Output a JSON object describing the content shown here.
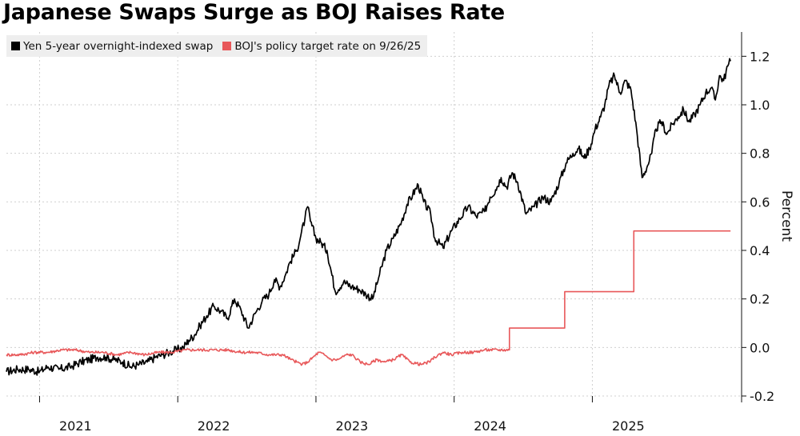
{
  "chart_data": {
    "type": "line",
    "title": "Japanese Swaps Surge as BOJ Raises Rate",
    "xlabel": "",
    "ylabel": "Percent",
    "ylim": [
      -0.2,
      1.3
    ],
    "xlim": [
      2020.5,
      2025.82
    ],
    "y_ticks": [
      -0.2,
      0.0,
      0.2,
      0.4,
      0.6,
      0.8,
      1.0,
      1.2
    ],
    "y_tick_labels": [
      "-0.2",
      "0.0",
      "0.2",
      "0.4",
      "0.6",
      "0.8",
      "1.0",
      "1.2"
    ],
    "x_tick_labels": [
      "2021",
      "2022",
      "2023",
      "2024",
      "2025"
    ],
    "x_tick_positions": [
      2021.0,
      2022.0,
      2023.0,
      2024.0,
      2025.0
    ],
    "x_gridlines": [
      2020.74,
      2021.74,
      2022.74,
      2023.74,
      2024.74
    ],
    "grid": true,
    "legend_position": "top-left",
    "colors": {
      "swap": "#000000",
      "policy": "#e8585a",
      "grid": "#cfcfcf",
      "legend_bg": "#eeeeee"
    },
    "series": [
      {
        "name": "Yen 5-year overnight-indexed swap",
        "color": "#000000",
        "x": [
          2020.5,
          2020.58,
          2020.66,
          2020.74,
          2020.8,
          2020.88,
          2020.96,
          2021.04,
          2021.1,
          2021.16,
          2021.22,
          2021.28,
          2021.34,
          2021.4,
          2021.46,
          2021.52,
          2021.58,
          2021.63,
          2021.68,
          2021.73,
          2021.78,
          2021.82,
          2021.86,
          2021.9,
          2021.95,
          2022.0,
          2022.05,
          2022.1,
          2022.15,
          2022.2,
          2022.25,
          2022.3,
          2022.35,
          2022.4,
          2022.44,
          2022.48,
          2022.52,
          2022.55,
          2022.6,
          2022.63,
          2022.66,
          2022.68,
          2022.7,
          2022.74,
          2022.78,
          2022.82,
          2022.88,
          2022.94,
          2023.0,
          2023.05,
          2023.1,
          2023.15,
          2023.2,
          2023.25,
          2023.3,
          2023.36,
          2023.4,
          2023.44,
          2023.48,
          2023.52,
          2023.57,
          2023.6,
          2023.66,
          2023.72,
          2023.78,
          2023.84,
          2023.9,
          2023.96,
          2024.0,
          2024.04,
          2024.08,
          2024.12,
          2024.16,
          2024.2,
          2024.26,
          2024.32,
          2024.38,
          2024.44,
          2024.5,
          2024.55,
          2024.6,
          2024.64,
          2024.68,
          2024.72,
          2024.76,
          2024.8,
          2024.83,
          2024.86,
          2024.9,
          2024.94,
          2024.98,
          2025.02,
          2025.06,
          2025.1,
          2025.14,
          2025.17,
          2025.2,
          2025.24,
          2025.28,
          2025.32,
          2025.36,
          2025.4,
          2025.44,
          2025.48,
          2025.52,
          2025.56,
          2025.6,
          2025.63,
          2025.66,
          2025.69,
          2025.72,
          2025.74
        ],
        "values": [
          -0.1,
          -0.09,
          -0.09,
          -0.1,
          -0.08,
          -0.09,
          -0.08,
          -0.06,
          -0.05,
          -0.04,
          -0.04,
          -0.05,
          -0.06,
          -0.08,
          -0.07,
          -0.06,
          -0.04,
          -0.03,
          -0.02,
          -0.01,
          0.0,
          0.03,
          0.05,
          0.09,
          0.13,
          0.17,
          0.15,
          0.12,
          0.2,
          0.15,
          0.08,
          0.14,
          0.19,
          0.22,
          0.28,
          0.25,
          0.3,
          0.35,
          0.4,
          0.46,
          0.53,
          0.58,
          0.52,
          0.45,
          0.43,
          0.4,
          0.23,
          0.27,
          0.25,
          0.24,
          0.22,
          0.2,
          0.3,
          0.4,
          0.45,
          0.52,
          0.59,
          0.63,
          0.67,
          0.6,
          0.55,
          0.45,
          0.41,
          0.48,
          0.53,
          0.58,
          0.54,
          0.56,
          0.62,
          0.65,
          0.7,
          0.66,
          0.72,
          0.68,
          0.55,
          0.58,
          0.62,
          0.6,
          0.68,
          0.76,
          0.8,
          0.82,
          0.78,
          0.82,
          0.9,
          0.95,
          1.0,
          1.08,
          1.12,
          1.05,
          1.1,
          1.06,
          0.9,
          0.7,
          0.75,
          0.8,
          0.9,
          0.93,
          0.88,
          0.92,
          0.95,
          0.98,
          0.93,
          0.96,
          1.0,
          1.05,
          1.07,
          1.02,
          1.12,
          1.1,
          1.16,
          1.18
        ]
      },
      {
        "name": "BOJ's policy target rate on 9/26/25",
        "color": "#e8585a",
        "x": [
          2020.5,
          2020.6,
          2020.7,
          2020.8,
          2020.9,
          2021.0,
          2021.1,
          2021.2,
          2021.3,
          2021.4,
          2021.5,
          2021.6,
          2021.7,
          2021.8,
          2021.9,
          2022.0,
          2022.1,
          2022.2,
          2022.3,
          2022.4,
          2022.5,
          2022.56,
          2022.6,
          2022.64,
          2022.68,
          2022.72,
          2022.76,
          2022.8,
          2022.85,
          2022.9,
          2022.96,
          2023.0,
          2023.06,
          2023.12,
          2023.18,
          2023.24,
          2023.3,
          2023.36,
          2023.42,
          2023.5,
          2023.56,
          2023.6,
          2023.66,
          2023.72,
          2023.8,
          2023.88,
          2023.96,
          2024.0,
          2024.14,
          2024.14,
          2024.4,
          2024.5,
          2024.54,
          2024.54,
          2024.7,
          2024.9,
          2025.0,
          2025.04,
          2025.04,
          2025.2,
          2025.4,
          2025.6,
          2025.74
        ],
        "values": [
          -0.03,
          -0.03,
          -0.02,
          -0.02,
          -0.01,
          -0.01,
          -0.02,
          -0.02,
          -0.03,
          -0.02,
          -0.03,
          -0.02,
          -0.02,
          -0.01,
          -0.01,
          -0.01,
          -0.01,
          -0.02,
          -0.02,
          -0.03,
          -0.03,
          -0.05,
          -0.06,
          -0.07,
          -0.06,
          -0.04,
          -0.02,
          -0.03,
          -0.05,
          -0.05,
          -0.03,
          -0.03,
          -0.06,
          -0.07,
          -0.05,
          -0.06,
          -0.05,
          -0.03,
          -0.06,
          -0.07,
          -0.06,
          -0.04,
          -0.02,
          -0.03,
          -0.02,
          -0.02,
          -0.01,
          -0.01,
          -0.01,
          0.08,
          0.08,
          0.08,
          0.08,
          0.23,
          0.23,
          0.23,
          0.23,
          0.23,
          0.48,
          0.48,
          0.48,
          0.48,
          0.48
        ]
      }
    ]
  }
}
